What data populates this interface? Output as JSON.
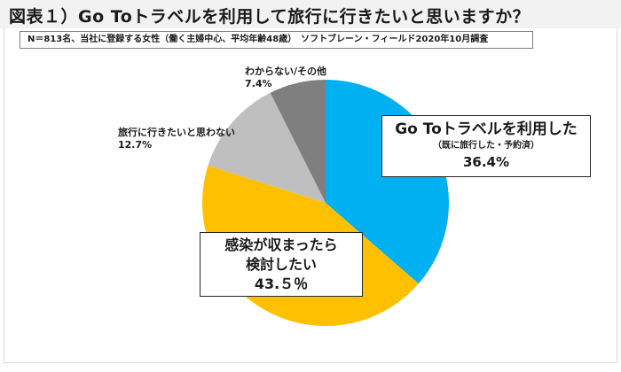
{
  "title": "図表１）Go Toトラベルを利用して旅行に行きたいと思いますか？",
  "note": "N＝813名、当社に登録する女性（働く主婦中心、平均年齢48歳）　ソフトブレーン・フィールド2020年10月調査",
  "labels": {
    "used": {
      "line1": "Go Toトラベルを利用した",
      "line2": "（既に旅行した・予約済）",
      "value": "36.4%"
    },
    "consider": {
      "line1": "感染が収まったら",
      "line2": "検討したい",
      "value": "43.５％"
    },
    "no": {
      "line1": "旅行に行きたいと思わない",
      "value": "12.7%"
    },
    "unknown": {
      "line1": "わからない/その他",
      "value": "7.4%"
    }
  },
  "colors": {
    "used": "#00b0f0",
    "consider": "#ffc000",
    "no": "#bfbfbf",
    "unknown": "#7f7f7f"
  },
  "chart_data": {
    "type": "pie",
    "title": "図表１）Go Toトラベルを利用して旅行に行きたいと思いますか？",
    "subtitle": "N＝813名、当社に登録する女性（働く主婦中心、平均年齢48歳）　ソフトブレーン・フィールド2020年10月調査",
    "categories": [
      "Go Toトラベルを利用した（既に旅行した・予約済）",
      "感染が収まったら検討したい",
      "旅行に行きたいと思わない",
      "わからない/その他"
    ],
    "values": [
      36.4,
      43.5,
      12.7,
      7.4
    ],
    "colors": [
      "#00b0f0",
      "#ffc000",
      "#bfbfbf",
      "#7f7f7f"
    ],
    "start_angle": "12 o'clock, clockwise",
    "legend": "none (direct labels)"
  }
}
